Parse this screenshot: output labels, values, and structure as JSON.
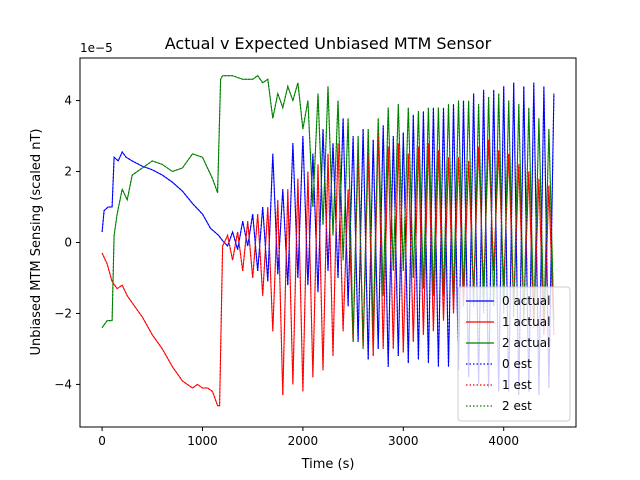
{
  "chart_data": {
    "type": "line",
    "title": "Actual v Expected Unbiased MTM Sensor",
    "xlabel": "Time (s)",
    "ylabel": "Unbiased MTM Sensing (scaled nT)",
    "offset_text": "1e−5",
    "xlim": [
      -220,
      4720
    ],
    "ylim": [
      -5.2,
      5.2
    ],
    "y_unit_scale": "1e-5",
    "xticks": [
      0,
      1000,
      2000,
      3000,
      4000
    ],
    "yticks": [
      -4,
      -2,
      0,
      2,
      4
    ],
    "xtick_labels": [
      "0",
      "1000",
      "2000",
      "3000",
      "4000"
    ],
    "ytick_labels": [
      "−4",
      "−2",
      "0",
      "2",
      "4"
    ],
    "grid": false,
    "legend_position": "lower-right",
    "series": [
      {
        "name": "0 actual",
        "color": "#0000ff",
        "style": "solid",
        "values": [
          [
            0,
            0.3
          ],
          [
            20,
            0.9
          ],
          [
            60,
            1.0
          ],
          [
            100,
            1.0
          ],
          [
            120,
            2.4
          ],
          [
            160,
            2.3
          ],
          [
            200,
            2.55
          ],
          [
            240,
            2.4
          ],
          [
            300,
            2.3
          ],
          [
            400,
            2.15
          ],
          [
            500,
            2.05
          ],
          [
            600,
            1.9
          ],
          [
            700,
            1.7
          ],
          [
            800,
            1.45
          ],
          [
            900,
            1.1
          ],
          [
            1000,
            0.8
          ],
          [
            1080,
            0.4
          ],
          [
            1160,
            0.2
          ],
          [
            1200,
            0.05
          ],
          [
            1250,
            -0.1
          ],
          [
            1300,
            0.3
          ],
          [
            1350,
            -0.2
          ],
          [
            1400,
            0.6
          ],
          [
            1450,
            -0.1
          ],
          [
            1500,
            0.8
          ],
          [
            1550,
            -0.8
          ],
          [
            1600,
            1.0
          ],
          [
            1650,
            -1.1
          ],
          [
            1700,
            2.5
          ],
          [
            1750,
            -0.9
          ],
          [
            1800,
            1.5
          ],
          [
            1850,
            -1.2
          ],
          [
            1900,
            2.8
          ],
          [
            1950,
            -1.0
          ],
          [
            2000,
            3.0
          ],
          [
            2050,
            -1.2
          ],
          [
            2100,
            2.5
          ],
          [
            2150,
            -1.4
          ],
          [
            2200,
            3.2
          ],
          [
            2250,
            -0.8
          ],
          [
            2300,
            2.8
          ],
          [
            2350,
            -1.0
          ],
          [
            2400,
            3.5
          ],
          [
            2450,
            -1.8
          ],
          [
            2500,
            3.0
          ],
          [
            2550,
            -2.8
          ],
          [
            2600,
            3.2
          ],
          [
            2650,
            -3.3
          ],
          [
            2700,
            2.9
          ],
          [
            2750,
            -3.0
          ],
          [
            2800,
            3.3
          ],
          [
            2850,
            -3.5
          ],
          [
            2900,
            3.0
          ],
          [
            2950,
            -3.2
          ],
          [
            3000,
            3.1
          ],
          [
            3050,
            -3.4
          ],
          [
            3100,
            3.6
          ],
          [
            3150,
            -3.3
          ],
          [
            3200,
            3.7
          ],
          [
            3250,
            -3.4
          ],
          [
            3300,
            3.8
          ],
          [
            3350,
            -3.5
          ],
          [
            3400,
            3.8
          ],
          [
            3450,
            -3.5
          ],
          [
            3500,
            3.9
          ],
          [
            3550,
            -3.6
          ],
          [
            3600,
            4.0
          ],
          [
            3650,
            -3.8
          ],
          [
            3700,
            4.2
          ],
          [
            3750,
            -4.0
          ],
          [
            3800,
            4.3
          ],
          [
            3850,
            -4.1
          ],
          [
            3900,
            4.3
          ],
          [
            3950,
            -4.2
          ],
          [
            4000,
            4.4
          ],
          [
            4050,
            -4.2
          ],
          [
            4100,
            4.5
          ],
          [
            4150,
            -4.3
          ],
          [
            4200,
            4.4
          ],
          [
            4250,
            -4.2
          ],
          [
            4300,
            4.5
          ],
          [
            4350,
            -4.3
          ],
          [
            4400,
            4.4
          ],
          [
            4450,
            -4.1
          ],
          [
            4500,
            4.2
          ]
        ]
      },
      {
        "name": "1 actual",
        "color": "#ff0000",
        "style": "solid",
        "values": [
          [
            0,
            -0.3
          ],
          [
            50,
            -0.6
          ],
          [
            100,
            -1.1
          ],
          [
            150,
            -1.3
          ],
          [
            200,
            -1.2
          ],
          [
            250,
            -1.5
          ],
          [
            300,
            -1.7
          ],
          [
            400,
            -2.1
          ],
          [
            500,
            -2.6
          ],
          [
            600,
            -3.0
          ],
          [
            700,
            -3.5
          ],
          [
            800,
            -3.9
          ],
          [
            900,
            -4.1
          ],
          [
            950,
            -4.0
          ],
          [
            1000,
            -4.1
          ],
          [
            1050,
            -4.1
          ],
          [
            1100,
            -4.2
          ],
          [
            1150,
            -4.6
          ],
          [
            1170,
            -4.6
          ],
          [
            1200,
            -0.1
          ],
          [
            1250,
            0.2
          ],
          [
            1300,
            -0.5
          ],
          [
            1350,
            0.3
          ],
          [
            1400,
            -0.8
          ],
          [
            1450,
            0.6
          ],
          [
            1500,
            -1.0
          ],
          [
            1550,
            0.8
          ],
          [
            1600,
            -1.5
          ],
          [
            1650,
            1.0
          ],
          [
            1700,
            -2.5
          ],
          [
            1750,
            1.2
          ],
          [
            1800,
            -4.3
          ],
          [
            1850,
            1.5
          ],
          [
            1900,
            -4.0
          ],
          [
            1950,
            1.8
          ],
          [
            2000,
            -4.2
          ],
          [
            2050,
            2.0
          ],
          [
            2100,
            -3.8
          ],
          [
            2150,
            2.2
          ],
          [
            2200,
            -3.6
          ],
          [
            2250,
            2.5
          ],
          [
            2300,
            -3.2
          ],
          [
            2350,
            2.8
          ],
          [
            2400,
            -2.5
          ],
          [
            2450,
            1.5
          ],
          [
            2500,
            -2.8
          ],
          [
            2550,
            2.5
          ],
          [
            2600,
            -2.9
          ],
          [
            2650,
            2.5
          ],
          [
            2700,
            -3.2
          ],
          [
            2750,
            3.1
          ],
          [
            2800,
            -3.0
          ],
          [
            2850,
            2.7
          ],
          [
            2900,
            -3.0
          ],
          [
            2950,
            2.8
          ],
          [
            3000,
            -3.1
          ],
          [
            3050,
            2.5
          ],
          [
            3100,
            -2.8
          ],
          [
            3150,
            2.7
          ],
          [
            3200,
            -2.6
          ],
          [
            3250,
            2.8
          ],
          [
            3300,
            -2.5
          ],
          [
            3350,
            2.6
          ],
          [
            3400,
            -2.2
          ],
          [
            3450,
            2.4
          ],
          [
            3500,
            -2.0
          ],
          [
            3550,
            2.4
          ],
          [
            3600,
            -1.8
          ],
          [
            3650,
            2.3
          ],
          [
            3700,
            -1.5
          ],
          [
            3750,
            2.7
          ],
          [
            3800,
            -1.3
          ],
          [
            3850,
            2.9
          ],
          [
            3900,
            -0.8
          ],
          [
            3950,
            2.6
          ],
          [
            4000,
            -1.2
          ],
          [
            4050,
            2.5
          ],
          [
            4100,
            -1.8
          ],
          [
            4150,
            2.2
          ],
          [
            4200,
            -2.0
          ],
          [
            4250,
            2.0
          ],
          [
            4300,
            -2.4
          ],
          [
            4350,
            1.8
          ],
          [
            4400,
            -2.6
          ],
          [
            4450,
            1.6
          ],
          [
            4500,
            -2.6
          ]
        ]
      },
      {
        "name": "2 actual",
        "color": "#008000",
        "style": "solid",
        "values": [
          [
            0,
            -2.4
          ],
          [
            50,
            -2.2
          ],
          [
            100,
            -2.2
          ],
          [
            120,
            0.2
          ],
          [
            150,
            0.8
          ],
          [
            200,
            1.5
          ],
          [
            250,
            1.2
          ],
          [
            300,
            1.9
          ],
          [
            400,
            2.1
          ],
          [
            500,
            2.3
          ],
          [
            600,
            2.2
          ],
          [
            700,
            2.0
          ],
          [
            800,
            2.1
          ],
          [
            900,
            2.5
          ],
          [
            1000,
            2.4
          ],
          [
            1100,
            1.8
          ],
          [
            1150,
            1.4
          ],
          [
            1180,
            4.6
          ],
          [
            1200,
            4.7
          ],
          [
            1300,
            4.7
          ],
          [
            1400,
            4.6
          ],
          [
            1500,
            4.6
          ],
          [
            1550,
            4.7
          ],
          [
            1600,
            4.5
          ],
          [
            1650,
            4.6
          ],
          [
            1700,
            3.5
          ],
          [
            1750,
            4.2
          ],
          [
            1800,
            3.8
          ],
          [
            1850,
            4.4
          ],
          [
            1900,
            4.0
          ],
          [
            1950,
            4.5
          ],
          [
            2000,
            3.2
          ],
          [
            2050,
            4.0
          ],
          [
            2100,
            1.0
          ],
          [
            2150,
            4.2
          ],
          [
            2200,
            0.5
          ],
          [
            2250,
            4.4
          ],
          [
            2300,
            0.2
          ],
          [
            2350,
            4.0
          ],
          [
            2400,
            -0.5
          ],
          [
            2450,
            3.5
          ],
          [
            2500,
            -2.8
          ],
          [
            2550,
            3.0
          ],
          [
            2600,
            -3.0
          ],
          [
            2650,
            3.2
          ],
          [
            2700,
            -2.5
          ],
          [
            2750,
            3.5
          ],
          [
            2800,
            -1.5
          ],
          [
            2850,
            3.8
          ],
          [
            2900,
            -0.8
          ],
          [
            2950,
            3.9
          ],
          [
            3000,
            -0.8
          ],
          [
            3050,
            3.8
          ],
          [
            3100,
            -1.0
          ],
          [
            3150,
            3.7
          ],
          [
            3200,
            -1.3
          ],
          [
            3250,
            3.8
          ],
          [
            3300,
            -1.5
          ],
          [
            3350,
            3.8
          ],
          [
            3400,
            -1.5
          ],
          [
            3450,
            3.9
          ],
          [
            3500,
            -1.6
          ],
          [
            3550,
            4.0
          ],
          [
            3600,
            -1.5
          ],
          [
            3650,
            4.0
          ],
          [
            3700,
            -1.8
          ],
          [
            3750,
            3.9
          ],
          [
            3800,
            -2.0
          ],
          [
            3850,
            4.1
          ],
          [
            3900,
            -1.8
          ],
          [
            3950,
            4.2
          ],
          [
            4000,
            -2.0
          ],
          [
            4050,
            4.0
          ],
          [
            4100,
            -2.1
          ],
          [
            4150,
            3.9
          ],
          [
            4200,
            -2.3
          ],
          [
            4250,
            3.8
          ],
          [
            4300,
            -2.2
          ],
          [
            4350,
            3.5
          ],
          [
            4400,
            -2.2
          ],
          [
            4450,
            3.2
          ],
          [
            4500,
            -2.2
          ]
        ]
      },
      {
        "name": "0 est",
        "color": "#0000ff",
        "style": "dotted",
        "same_as": "0 actual"
      },
      {
        "name": "1 est",
        "color": "#ff0000",
        "style": "dotted",
        "same_as": "1 actual"
      },
      {
        "name": "2 est",
        "color": "#008000",
        "style": "dotted",
        "same_as": "2 actual"
      }
    ]
  }
}
